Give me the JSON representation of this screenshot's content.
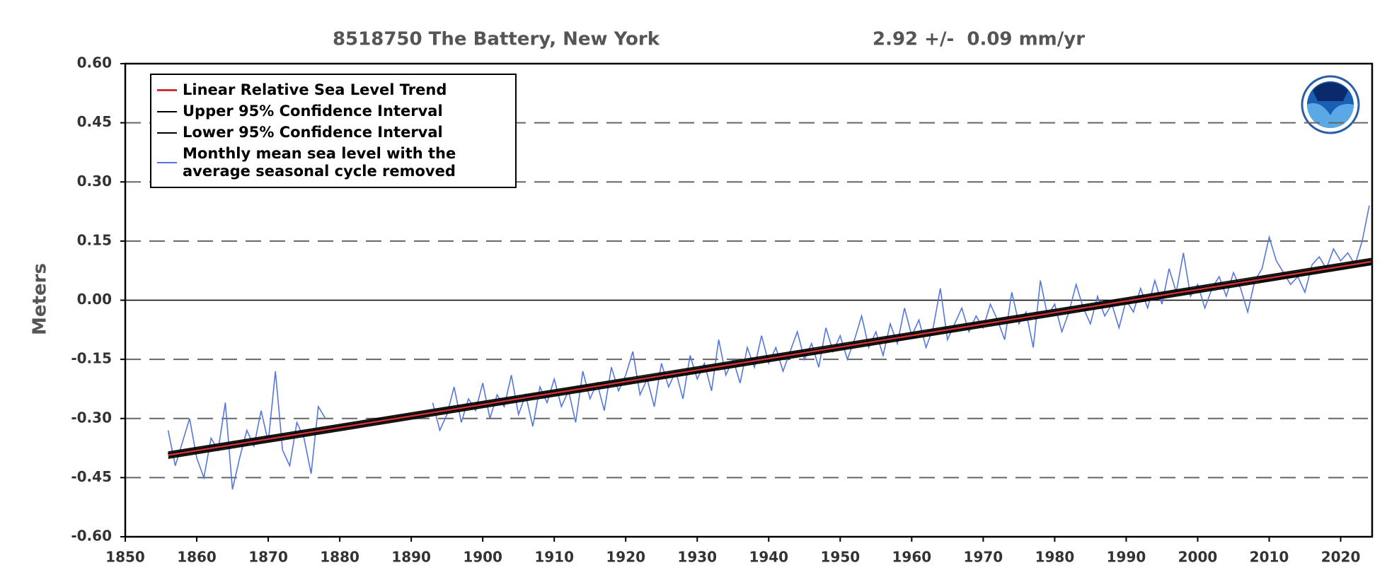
{
  "chart_data": {
    "type": "line",
    "title": "8518750 The Battery, New York",
    "subtitle": "2.92 +/-  0.09 mm/yr",
    "y_label": "Meters",
    "xlim": [
      1850,
      2024.4
    ],
    "xticks": [
      1850,
      1860,
      1870,
      1880,
      1890,
      1900,
      1910,
      1920,
      1930,
      1940,
      1950,
      1960,
      1970,
      1980,
      1990,
      2000,
      2010,
      2020
    ],
    "ylim": [
      -0.6,
      0.6
    ],
    "yticks": [
      {
        "value": -0.6,
        "label": "-0.60"
      },
      {
        "value": -0.45,
        "label": "-0.45"
      },
      {
        "value": -0.3,
        "label": "-0.30"
      },
      {
        "value": -0.15,
        "label": "-0.15"
      },
      {
        "value": 0,
        "label": "0.00"
      },
      {
        "value": 0.15,
        "label": "0.15"
      },
      {
        "value": 0.3,
        "label": "0.30"
      },
      {
        "value": 0.45,
        "label": "0.45"
      },
      {
        "value": 0.6,
        "label": "0.60"
      }
    ],
    "grid": true,
    "series": [
      {
        "name": "Monthly mean sea level with the average seasonal cycle removed",
        "color": "#5577dd",
        "x": [
          1856,
          1857,
          1858,
          1859,
          1860,
          1861,
          1862,
          1863,
          1864,
          1865,
          1866,
          1867,
          1868,
          1869,
          1870,
          1871,
          1872,
          1873,
          1874,
          1875,
          1876,
          1877,
          1878,
          1885,
          1893,
          1894,
          1895,
          1896,
          1897,
          1898,
          1899,
          1900,
          1901,
          1902,
          1903,
          1904,
          1905,
          1906,
          1907,
          1908,
          1909,
          1910,
          1911,
          1912,
          1913,
          1914,
          1915,
          1916,
          1917,
          1918,
          1919,
          1920,
          1921,
          1922,
          1923,
          1924,
          1925,
          1926,
          1927,
          1928,
          1929,
          1930,
          1931,
          1932,
          1933,
          1934,
          1935,
          1936,
          1937,
          1938,
          1939,
          1940,
          1941,
          1942,
          1943,
          1944,
          1945,
          1946,
          1947,
          1948,
          1949,
          1950,
          1951,
          1952,
          1953,
          1954,
          1955,
          1956,
          1957,
          1958,
          1959,
          1960,
          1961,
          1962,
          1963,
          1964,
          1965,
          1966,
          1967,
          1968,
          1969,
          1970,
          1971,
          1972,
          1973,
          1974,
          1975,
          1976,
          1977,
          1978,
          1979,
          1980,
          1981,
          1982,
          1983,
          1984,
          1985,
          1986,
          1987,
          1988,
          1989,
          1990,
          1991,
          1992,
          1993,
          1994,
          1995,
          1996,
          1997,
          1998,
          1999,
          2000,
          2001,
          2002,
          2003,
          2004,
          2005,
          2006,
          2007,
          2008,
          2009,
          2010,
          2011,
          2012,
          2013,
          2014,
          2015,
          2016,
          2017,
          2018,
          2019,
          2020,
          2021,
          2022,
          2023,
          2024
        ],
        "values": [
          -0.33,
          -0.42,
          -0.36,
          -0.3,
          -0.4,
          -0.45,
          -0.35,
          -0.38,
          -0.26,
          -0.48,
          -0.4,
          -0.33,
          -0.37,
          -0.28,
          -0.36,
          -0.18,
          -0.38,
          -0.42,
          -0.31,
          -0.35,
          -0.44,
          -0.27,
          -0.3,
          null,
          -0.26,
          -0.33,
          -0.29,
          -0.22,
          -0.31,
          -0.25,
          -0.28,
          -0.21,
          -0.3,
          -0.24,
          -0.27,
          -0.19,
          -0.29,
          -0.24,
          -0.32,
          -0.22,
          -0.26,
          -0.2,
          -0.27,
          -0.23,
          -0.31,
          -0.18,
          -0.25,
          -0.21,
          -0.28,
          -0.17,
          -0.23,
          -0.19,
          -0.13,
          -0.24,
          -0.2,
          -0.27,
          -0.16,
          -0.22,
          -0.18,
          -0.25,
          -0.14,
          -0.2,
          -0.16,
          -0.23,
          -0.1,
          -0.19,
          -0.15,
          -0.21,
          -0.12,
          -0.17,
          -0.09,
          -0.16,
          -0.12,
          -0.18,
          -0.13,
          -0.08,
          -0.15,
          -0.11,
          -0.17,
          -0.07,
          -0.13,
          -0.09,
          -0.15,
          -0.1,
          -0.04,
          -0.12,
          -0.08,
          -0.14,
          -0.06,
          -0.11,
          -0.02,
          -0.09,
          -0.05,
          -0.12,
          -0.07,
          0.03,
          -0.1,
          -0.06,
          -0.02,
          -0.08,
          -0.04,
          -0.07,
          -0.01,
          -0.05,
          -0.1,
          0.02,
          -0.06,
          -0.03,
          -0.12,
          0.05,
          -0.04,
          -0.01,
          -0.08,
          -0.03,
          0.04,
          -0.02,
          -0.06,
          0.01,
          -0.04,
          -0.01,
          -0.07,
          0,
          -0.03,
          0.03,
          -0.02,
          0.05,
          -0.01,
          0.08,
          0.02,
          0.12,
          0.01,
          0.04,
          -0.02,
          0.03,
          0.06,
          0.01,
          0.07,
          0.03,
          -0.03,
          0.05,
          0.08,
          0.16,
          0.1,
          0.07,
          0.04,
          0.06,
          0.02,
          0.09,
          0.11,
          0.08,
          0.13,
          0.1,
          0.12,
          0.09,
          0.15,
          0.24
        ]
      },
      {
        "name": "Upper 95% Confidence Interval",
        "color": "#000000",
        "x": [
          1856,
          2024.3
        ],
        "values": [
          -0.385,
          0.106
        ]
      },
      {
        "name": "Lower 95% Confidence Interval",
        "color": "#000000",
        "x": [
          1856,
          2024.3
        ],
        "values": [
          -0.401,
          0.09
        ]
      },
      {
        "name": "Linear Relative Sea Level Trend",
        "color": "#cc3333",
        "x": [
          1856,
          2024.3
        ],
        "values": [
          -0.393,
          0.098
        ]
      }
    ],
    "legend_order": [
      3,
      1,
      2,
      0
    ],
    "legend": "upper left"
  }
}
